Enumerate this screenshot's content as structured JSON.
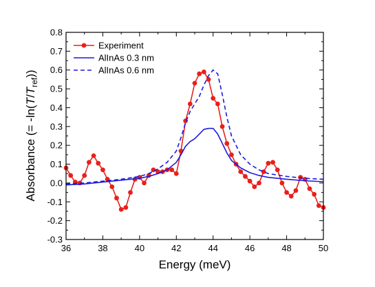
{
  "chart_data": {
    "type": "line",
    "xlabel": "Energy (meV)",
    "ylabel": {
      "prefix": "Absorbance (= -ln(",
      "T1": "T",
      "slash": "/",
      "T2": "T",
      "sub": "ref",
      "suffix": "))"
    },
    "xlim": [
      36,
      50
    ],
    "ylim": [
      -0.3,
      0.8
    ],
    "xticks": [
      36,
      38,
      40,
      42,
      44,
      46,
      48,
      50
    ],
    "yticks": [
      -0.3,
      -0.2,
      -0.1,
      0.0,
      0.1,
      0.2,
      0.3,
      0.4,
      0.5,
      0.6,
      0.7,
      0.8
    ],
    "xtick_labels": [
      "36",
      "38",
      "40",
      "42",
      "44",
      "46",
      "48",
      "50"
    ],
    "ytick_labels": [
      "-0.3",
      "-0.2",
      "-0.1",
      "0.0",
      "0.1",
      "0.2",
      "0.3",
      "0.4",
      "0.5",
      "0.6",
      "0.7",
      "0.8"
    ],
    "grid": false,
    "legend_position": "top-left",
    "series": [
      {
        "name": "Experiment",
        "style": "line-markers",
        "color": "#e8201a",
        "x": [
          36.0,
          36.25,
          36.5,
          36.75,
          37.0,
          37.25,
          37.5,
          37.75,
          38.0,
          38.25,
          38.5,
          38.75,
          39.0,
          39.25,
          39.5,
          39.75,
          40.0,
          40.25,
          40.5,
          40.75,
          41.0,
          41.25,
          41.5,
          41.75,
          42.0,
          42.25,
          42.5,
          42.75,
          43.0,
          43.25,
          43.5,
          43.75,
          44.0,
          44.25,
          44.5,
          44.75,
          45.0,
          45.25,
          45.5,
          45.75,
          46.0,
          46.25,
          46.5,
          46.75,
          47.0,
          47.25,
          47.5,
          47.75,
          48.0,
          48.25,
          48.5,
          48.75,
          49.0,
          49.25,
          49.5,
          49.75,
          50.0
        ],
        "y": [
          0.08,
          0.04,
          0.005,
          0.0,
          0.04,
          0.11,
          0.145,
          0.105,
          0.07,
          0.02,
          -0.02,
          -0.08,
          -0.14,
          -0.13,
          -0.05,
          0.02,
          0.03,
          0.0,
          0.04,
          0.07,
          0.06,
          0.06,
          0.07,
          0.07,
          0.05,
          0.17,
          0.33,
          0.42,
          0.53,
          0.58,
          0.59,
          0.55,
          0.45,
          0.42,
          0.3,
          0.21,
          0.15,
          0.1,
          0.06,
          0.035,
          0.01,
          -0.02,
          0.0,
          0.06,
          0.105,
          0.11,
          0.07,
          0.0,
          -0.05,
          -0.07,
          -0.04,
          0.03,
          0.02,
          -0.03,
          -0.06,
          -0.12,
          -0.13
        ]
      },
      {
        "name": "AlInAs 0.3 nm",
        "style": "solid",
        "color": "#1a1adb",
        "x": [
          36.0,
          37.0,
          38.0,
          39.0,
          40.0,
          40.5,
          41.0,
          41.5,
          42.0,
          42.25,
          42.5,
          42.75,
          43.0,
          43.25,
          43.5,
          43.75,
          44.0,
          44.25,
          44.5,
          44.75,
          45.0,
          45.5,
          46.0,
          46.5,
          47.0,
          48.0,
          49.0,
          50.0
        ],
        "y": [
          -0.01,
          -0.005,
          0.005,
          0.015,
          0.025,
          0.035,
          0.05,
          0.07,
          0.11,
          0.15,
          0.195,
          0.22,
          0.235,
          0.26,
          0.285,
          0.29,
          0.29,
          0.26,
          0.21,
          0.16,
          0.12,
          0.08,
          0.055,
          0.04,
          0.03,
          0.02,
          0.012,
          0.007
        ]
      },
      {
        "name": "AlInAs 0.6 nm",
        "style": "dashed",
        "color": "#1a1adb",
        "x": [
          36.0,
          37.0,
          38.0,
          39.0,
          40.0,
          40.5,
          41.0,
          41.5,
          42.0,
          42.25,
          42.5,
          42.75,
          43.0,
          43.25,
          43.5,
          43.75,
          44.0,
          44.25,
          44.5,
          44.75,
          45.0,
          45.5,
          46.0,
          46.5,
          47.0,
          48.0,
          49.0,
          50.0
        ],
        "y": [
          -0.005,
          0.0,
          0.01,
          0.02,
          0.035,
          0.05,
          0.075,
          0.11,
          0.17,
          0.24,
          0.32,
          0.38,
          0.42,
          0.46,
          0.52,
          0.57,
          0.6,
          0.58,
          0.47,
          0.35,
          0.25,
          0.15,
          0.1,
          0.07,
          0.05,
          0.035,
          0.025,
          0.02
        ]
      }
    ]
  }
}
